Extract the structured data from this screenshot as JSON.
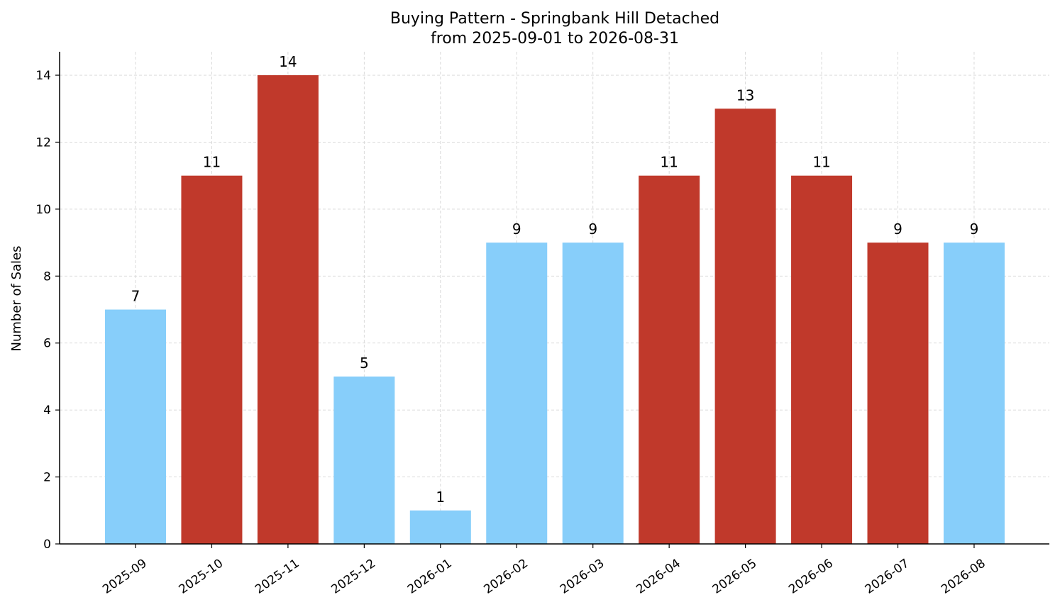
{
  "chart_data": {
    "type": "bar",
    "title": "Buying Pattern - Springbank Hill Detached",
    "subtitle": "from 2025-09-01 to 2026-08-31",
    "xlabel": "",
    "ylabel": "Number of Sales",
    "categories": [
      "2025-09",
      "2025-10",
      "2025-11",
      "2025-12",
      "2026-01",
      "2026-02",
      "2026-03",
      "2026-04",
      "2026-05",
      "2026-06",
      "2026-07",
      "2026-08"
    ],
    "values": [
      7,
      11,
      14,
      5,
      1,
      9,
      9,
      11,
      13,
      11,
      9,
      9
    ],
    "bar_colors": [
      "#87cefa",
      "#c0392b",
      "#c0392b",
      "#87cefa",
      "#87cefa",
      "#87cefa",
      "#87cefa",
      "#c0392b",
      "#c0392b",
      "#c0392b",
      "#c0392b",
      "#87cefa"
    ],
    "ylim": [
      0,
      14.7
    ],
    "yticks": [
      0,
      2,
      4,
      6,
      8,
      10,
      12,
      14
    ],
    "grid": true,
    "tick_label_rotation": 35,
    "legend": "none"
  }
}
